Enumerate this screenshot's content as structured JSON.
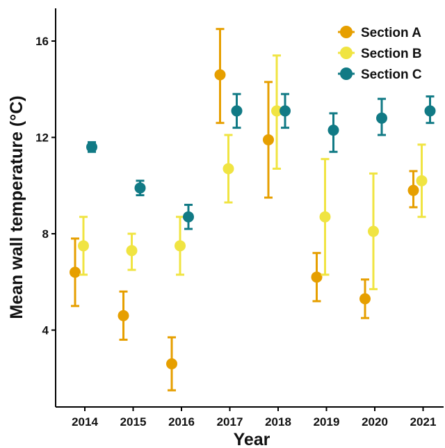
{
  "chart_data": {
    "type": "scatter",
    "subtype": "point-with-error-bars",
    "xlabel": "Year",
    "ylabel": "Mean wall temperature (°C)",
    "categories": [
      "2014",
      "2015",
      "2016",
      "2017",
      "2018",
      "2019",
      "2020",
      "2021"
    ],
    "y_ticks": [
      4,
      8,
      12,
      16
    ],
    "ylim": [
      1.2,
      17.3
    ],
    "grid": false,
    "legend_position": "top-right",
    "series": [
      {
        "name": "Section A",
        "color": "#E69F00",
        "values": [
          6.4,
          4.6,
          2.6,
          14.6,
          11.9,
          6.2,
          5.3,
          9.8
        ],
        "lower": [
          5.0,
          3.6,
          1.5,
          12.6,
          9.5,
          5.2,
          4.5,
          9.1
        ],
        "upper": [
          7.8,
          5.6,
          3.7,
          16.5,
          14.3,
          7.2,
          6.1,
          10.6
        ]
      },
      {
        "name": "Section B",
        "color": "#F0E442",
        "values": [
          7.5,
          7.3,
          7.5,
          10.7,
          13.1,
          8.7,
          8.1,
          10.2
        ],
        "lower": [
          6.3,
          6.5,
          6.3,
          9.3,
          10.7,
          6.3,
          5.7,
          8.7
        ],
        "upper": [
          8.7,
          8.0,
          8.7,
          12.1,
          15.4,
          11.1,
          10.5,
          11.7
        ]
      },
      {
        "name": "Section C",
        "color": "#117A85",
        "values": [
          11.6,
          9.9,
          8.7,
          13.1,
          13.1,
          12.3,
          12.8,
          13.1
        ],
        "lower": [
          11.4,
          9.6,
          8.2,
          12.4,
          12.4,
          11.4,
          12.1,
          12.6
        ],
        "upper": [
          11.8,
          10.2,
          9.2,
          13.8,
          13.8,
          13.0,
          13.6,
          13.7
        ]
      }
    ]
  }
}
